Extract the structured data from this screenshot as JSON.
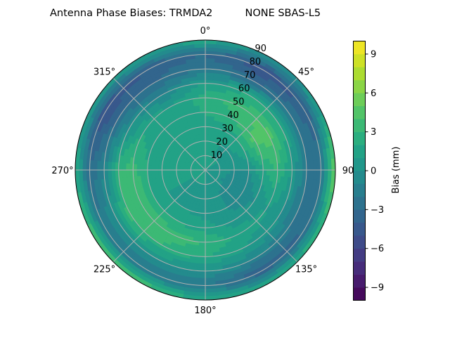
{
  "chart_data": {
    "type": "heatmap",
    "subtype": "polar-filled-contour",
    "title": "Antenna Phase Biases: TRMDA2          NONE SBAS-L5",
    "colormap": "viridis",
    "angular_direction": "clockwise",
    "zero_location": "top",
    "angular_ticks": [
      "0°",
      "45°",
      "90",
      "135°",
      "180°",
      "225°",
      "270°",
      "315°"
    ],
    "radial_ticks": [
      "10",
      "20",
      "30",
      "40",
      "50",
      "60",
      "70",
      "80",
      "90"
    ],
    "rlim": [
      0,
      90
    ],
    "grid": true,
    "colorbar": {
      "label": "Bias (mm)",
      "range": [
        -10,
        10
      ],
      "level_step": 1,
      "ticks": [
        "−9",
        "−6",
        "−3",
        "0",
        "3",
        "6",
        "9"
      ],
      "placement": "right"
    },
    "azimuths_deg": [
      0,
      30,
      60,
      90,
      120,
      150,
      180,
      210,
      240,
      270,
      300,
      330
    ],
    "radii": [
      0,
      10,
      20,
      30,
      40,
      50,
      60,
      70,
      80,
      90
    ],
    "values_mm": [
      [
        1,
        1,
        1,
        1.5,
        2,
        2.5,
        1,
        -2,
        -3,
        2
      ],
      [
        1,
        1,
        1,
        1.5,
        3,
        3.5,
        2,
        -3,
        -5,
        0
      ],
      [
        1,
        1,
        0.5,
        2,
        4.5,
        4.5,
        2,
        -2,
        -4,
        1
      ],
      [
        1,
        0.5,
        0,
        0,
        2,
        3,
        1,
        -2,
        -2,
        6
      ],
      [
        1,
        0.5,
        -1,
        -1,
        0,
        1,
        0,
        -2,
        -3,
        3
      ],
      [
        1,
        0.5,
        0,
        0,
        0.5,
        1.5,
        1,
        -1,
        -4,
        2
      ],
      [
        1,
        1,
        0,
        0.5,
        1.5,
        3,
        2,
        0,
        -2,
        2
      ],
      [
        1,
        1,
        0.5,
        1,
        2,
        3.5,
        3,
        0,
        -2,
        4
      ],
      [
        1,
        1,
        1,
        1,
        2,
        4,
        3.5,
        0,
        -2,
        4
      ],
      [
        1,
        1,
        1,
        1,
        2,
        3.5,
        3,
        -1,
        -3,
        2
      ],
      [
        1,
        1,
        1,
        1,
        1.5,
        2,
        0,
        -3,
        -5,
        1
      ],
      [
        1,
        1,
        1,
        1,
        1.5,
        1,
        -1,
        -3,
        -4,
        1
      ]
    ]
  }
}
